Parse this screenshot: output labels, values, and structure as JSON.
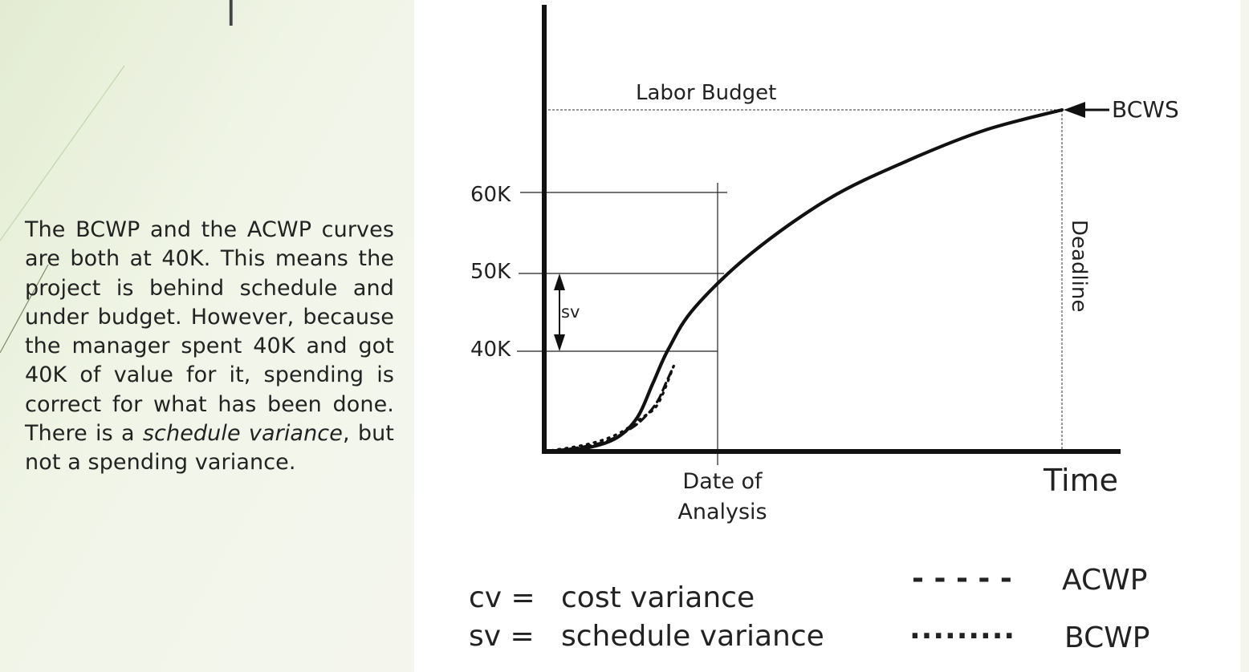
{
  "slide": {
    "body_text": {
      "part1": "The BCWP and the ACWP curves are both at 40K. This means the project is behind schedule and under budget. However, because the manager spent 40K and got 40K of value for it, spending is correct for what has been done. There is a ",
      "italic1": "schedule variance",
      "part2": ", but not a spending variance."
    }
  },
  "chart_data": {
    "type": "line",
    "y_ticks": [
      "40K",
      "50K",
      "60K"
    ],
    "x_labels": {
      "date_line1": "Date of",
      "date_line2": "Analysis",
      "time": "Time"
    },
    "labor_budget_label": "Labor Budget",
    "deadline_label": "Deadline",
    "bcws_label": "BCWS",
    "sv_label": "sv",
    "series": [
      {
        "name": "BCWS",
        "style": "solid",
        "points": [
          [
            0,
            0
          ],
          [
            8,
            1
          ],
          [
            14,
            4
          ],
          [
            18,
            10
          ],
          [
            21,
            20
          ],
          [
            24,
            30
          ],
          [
            29,
            42
          ],
          [
            40,
            58
          ],
          [
            55,
            74
          ],
          [
            70,
            85
          ],
          [
            85,
            94
          ],
          [
            100,
            100
          ]
        ]
      },
      {
        "name": "ACWP",
        "style": "dashed",
        "points": [
          [
            0,
            0
          ],
          [
            6,
            1
          ],
          [
            12,
            3
          ],
          [
            17,
            7
          ],
          [
            20,
            11
          ],
          [
            22,
            15
          ],
          [
            23.5,
            20
          ],
          [
            25,
            25
          ]
        ]
      },
      {
        "name": "BCWP",
        "style": "dotted",
        "points": [
          [
            0,
            0
          ],
          [
            8,
            2
          ],
          [
            14,
            5
          ],
          [
            19,
            10
          ],
          [
            22,
            14
          ],
          [
            25,
            25
          ]
        ]
      }
    ],
    "legend": {
      "cv_key": "cv =",
      "cv_desc": "cost variance",
      "sv_key": "sv =",
      "sv_desc": "schedule variance",
      "acwp_symbol": "- - - - -",
      "acwp": "ACWP",
      "bcwp_symbol": "·········",
      "bcwp": "BCWP"
    }
  }
}
